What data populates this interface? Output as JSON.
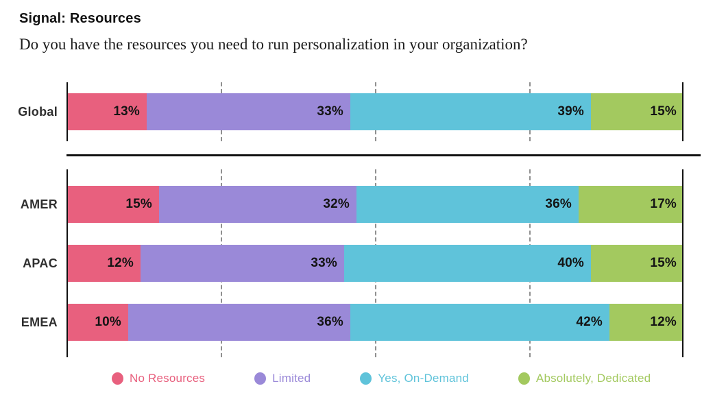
{
  "header": {
    "title": "Signal: Resources",
    "subtitle": "Do you have the resources you need to run personalization in your organization?"
  },
  "legend": {
    "items": [
      {
        "label": "No Resources",
        "color": "#E8607E"
      },
      {
        "label": "Limited",
        "color": "#9A89D8"
      },
      {
        "label": "Yes, On-Demand",
        "color": "#5FC3DA"
      },
      {
        "label": "Absolutely, Dedicated",
        "color": "#A3C95F"
      }
    ]
  },
  "chart_data": {
    "type": "bar",
    "orientation": "horizontal",
    "stacked": true,
    "unit": "%",
    "xlim": [
      0,
      100
    ],
    "gridlines_percent": [
      25,
      50,
      75
    ],
    "grid_style": "dashed",
    "legend_position": "bottom",
    "series_names": [
      "No Resources",
      "Limited",
      "Yes, On-Demand",
      "Absolutely, Dedicated"
    ],
    "series_colors": [
      "#E8607E",
      "#9A89D8",
      "#5FC3DA",
      "#A3C95F"
    ],
    "value_label_color": "#141414",
    "axis_color": "#111111",
    "groups": [
      {
        "name": "global",
        "rows": [
          {
            "category": "Global",
            "values": [
              13,
              33,
              39,
              15
            ]
          }
        ]
      },
      {
        "name": "regions",
        "rows": [
          {
            "category": "AMER",
            "values": [
              15,
              32,
              36,
              17
            ]
          },
          {
            "category": "APAC",
            "values": [
              12,
              33,
              40,
              15
            ]
          },
          {
            "category": "EMEA",
            "values": [
              10,
              36,
              42,
              12
            ]
          }
        ]
      }
    ]
  }
}
